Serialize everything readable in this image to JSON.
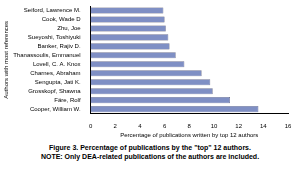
{
  "chart_data": {
    "type": "bar",
    "orientation": "horizontal",
    "title": "Figure 3. Percentage of publications by the \"top\" 12 authors.",
    "subtitle": "NOTE: Only DEA-related publications of the authors are included.",
    "x_label": "Percentage of publications written by top 12 authors",
    "y_label": "Authors with most references",
    "categories": [
      "Seiford, Lawrence M.",
      "Cook, Wade D",
      "Zhu, Joe",
      "Sueyoshi, Toshiyuki",
      "Banker, Rajiv D.",
      "Thanassoulis, Emmanuel",
      "Lovell, C. A. Knox",
      "Charnes, Abraham",
      "Sengupta, Jati K.",
      "Grosskopf, Shawna",
      "Färe, Rolf",
      "Cooper, William W."
    ],
    "values": [
      5.9,
      6.0,
      6.1,
      6.3,
      6.4,
      6.9,
      7.6,
      9.0,
      9.7,
      9.9,
      11.3,
      13.6
    ],
    "color": "#7f8fc4",
    "xlim": [
      0,
      16
    ],
    "xticks": [
      0,
      2,
      4,
      6,
      8,
      10,
      12,
      14,
      16
    ],
    "grid": false
  }
}
